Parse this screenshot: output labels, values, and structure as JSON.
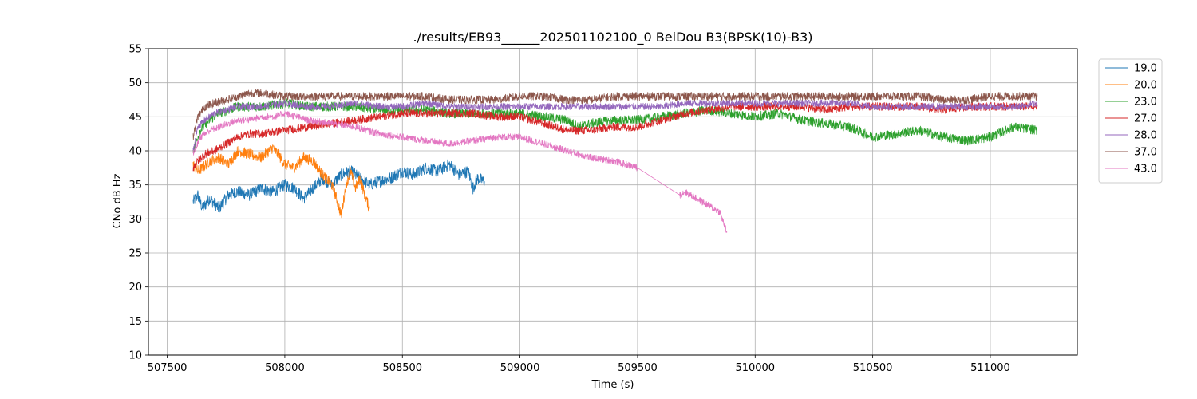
{
  "chart_data": {
    "type": "line",
    "title": "./results/EB93______202501102100_0 BeiDou B3(BPSK(10)-B3)",
    "xlabel": "Time (s)",
    "ylabel": "CNo dB Hz",
    "xlim": [
      507420,
      511370
    ],
    "ylim": [
      10,
      55
    ],
    "x_ticks": [
      507500,
      508000,
      508500,
      509000,
      509500,
      510000,
      510500,
      511000
    ],
    "y_ticks": [
      10,
      15,
      20,
      25,
      30,
      35,
      40,
      45,
      50,
      55
    ],
    "grid": true,
    "legend_position": "upper right, outside plot",
    "series": [
      {
        "name": "19.0",
        "color": "#1f77b4",
        "noise": 0.9,
        "x": [
          507610,
          507630,
          507650,
          507680,
          507720,
          507760,
          507800,
          507850,
          507900,
          507950,
          508000,
          508040,
          508080,
          508120,
          508160,
          508200,
          508240,
          508280,
          508320,
          508360,
          508400,
          508450,
          508500,
          508550,
          508600,
          508650,
          508700,
          508740,
          508780,
          508800,
          508820,
          508850
        ],
        "y": [
          32.5,
          33.5,
          31.5,
          33.0,
          31.5,
          33.5,
          34.0,
          33.5,
          34.5,
          34.0,
          35.0,
          34.5,
          33.0,
          34.5,
          36.0,
          35.0,
          36.5,
          37.0,
          36.0,
          35.0,
          35.5,
          36.0,
          37.0,
          36.5,
          37.5,
          37.0,
          38.0,
          36.5,
          37.0,
          34.5,
          36.0,
          35.5
        ]
      },
      {
        "name": "20.0",
        "color": "#ff7f0e",
        "noise": 0.8,
        "x": [
          507610,
          507630,
          507650,
          507680,
          507720,
          507760,
          507800,
          507850,
          507900,
          507950,
          508000,
          508040,
          508080,
          508120,
          508160,
          508200,
          508220,
          508240,
          508260,
          508280,
          508300,
          508320,
          508340,
          508360
        ],
        "y": [
          38.0,
          37.0,
          37.5,
          38.5,
          39.0,
          38.0,
          40.0,
          39.5,
          39.0,
          40.5,
          38.0,
          37.5,
          39.0,
          38.5,
          36.5,
          35.0,
          33.0,
          30.5,
          35.0,
          37.0,
          34.5,
          36.0,
          33.5,
          31.5
        ]
      },
      {
        "name": "23.0",
        "color": "#2ca02c",
        "noise": 0.7,
        "x": [
          507610,
          507640,
          507680,
          507720,
          507760,
          507800,
          507900,
          508000,
          508100,
          508200,
          508300,
          508400,
          508500,
          508600,
          508700,
          508800,
          508900,
          509000,
          509100,
          509200,
          509250,
          509300,
          509400,
          509500,
          509600,
          509700,
          509800,
          509900,
          510000,
          510100,
          510200,
          510300,
          510400,
          510500,
          510600,
          510700,
          510800,
          510900,
          511000,
          511100,
          511200
        ],
        "y": [
          40.0,
          43.0,
          44.5,
          45.5,
          46.0,
          46.5,
          46.5,
          47.0,
          46.5,
          46.5,
          46.5,
          46.0,
          46.0,
          46.0,
          45.5,
          45.5,
          45.5,
          45.5,
          45.0,
          44.5,
          43.5,
          44.0,
          44.5,
          44.5,
          45.0,
          45.5,
          46.0,
          45.5,
          45.0,
          45.5,
          44.5,
          44.0,
          43.5,
          42.0,
          42.5,
          43.0,
          42.0,
          41.5,
          42.0,
          43.5,
          43.0
        ]
      },
      {
        "name": "27.0",
        "color": "#d62728",
        "noise": 0.6,
        "x": [
          507610,
          507630,
          507660,
          507700,
          507750,
          507800,
          507850,
          507900,
          508000,
          508100,
          508200,
          508300,
          508400,
          508500,
          508600,
          508700,
          508800,
          508900,
          509000,
          509100,
          509200,
          509300,
          509400,
          509500,
          509600,
          509700,
          509800,
          509900,
          510000,
          510100,
          510200,
          510300,
          510400,
          510500,
          510600,
          510700,
          510800,
          510900,
          511000,
          511100,
          511200
        ],
        "y": [
          37.5,
          38.5,
          39.5,
          40.0,
          41.0,
          42.0,
          42.5,
          42.5,
          43.0,
          43.5,
          44.0,
          44.5,
          45.0,
          45.5,
          45.5,
          45.5,
          45.5,
          45.0,
          45.0,
          44.0,
          43.0,
          43.0,
          43.5,
          43.5,
          44.5,
          45.5,
          46.0,
          46.5,
          46.5,
          46.5,
          46.5,
          46.0,
          46.5,
          46.5,
          46.5,
          46.5,
          46.0,
          46.5,
          46.5,
          46.5,
          46.5
        ]
      },
      {
        "name": "28.0",
        "color": "#9467bd",
        "noise": 0.5,
        "x": [
          507610,
          507630,
          507660,
          507700,
          507750,
          507800,
          507900,
          508000,
          508100,
          508200,
          508300,
          508400,
          508500,
          508600,
          508700,
          508800,
          508900,
          509000,
          509100,
          509200,
          509300,
          509400,
          509500,
          509600,
          509700,
          509800,
          509900,
          510000,
          510100,
          510200,
          510300,
          510400,
          510500,
          510600,
          510700,
          510800,
          510900,
          511000,
          511100,
          511200
        ],
        "y": [
          40.0,
          43.5,
          44.5,
          45.5,
          46.0,
          46.5,
          46.5,
          47.0,
          46.5,
          46.5,
          47.0,
          46.5,
          46.5,
          47.0,
          46.5,
          46.5,
          46.5,
          46.5,
          46.5,
          46.5,
          46.5,
          46.5,
          46.5,
          46.5,
          47.0,
          47.0,
          47.0,
          47.0,
          47.0,
          47.0,
          47.0,
          47.0,
          46.5,
          46.5,
          46.5,
          46.5,
          46.5,
          46.5,
          46.5,
          47.0
        ]
      },
      {
        "name": "37.0",
        "color": "#8c564b",
        "noise": 0.6,
        "x": [
          507610,
          507630,
          507660,
          507700,
          507750,
          507800,
          507850,
          507900,
          508000,
          508100,
          508200,
          508300,
          508400,
          508500,
          508600,
          508700,
          508800,
          508900,
          509000,
          509100,
          509200,
          509300,
          509400,
          509500,
          509600,
          509700,
          509800,
          509900,
          510000,
          510100,
          510200,
          510300,
          510400,
          510500,
          510600,
          510700,
          510800,
          510900,
          511000,
          511100,
          511200
        ],
        "y": [
          42.0,
          45.0,
          46.5,
          47.0,
          47.5,
          48.0,
          48.5,
          48.5,
          48.0,
          48.0,
          48.0,
          48.0,
          48.0,
          48.0,
          48.0,
          47.5,
          47.5,
          47.5,
          48.0,
          48.0,
          47.5,
          47.5,
          48.0,
          48.0,
          48.0,
          48.0,
          48.0,
          48.0,
          48.0,
          48.0,
          48.0,
          48.0,
          48.0,
          48.0,
          48.0,
          48.0,
          47.5,
          47.5,
          48.0,
          48.0,
          48.0
        ]
      },
      {
        "name": "43.0",
        "color": "#e377c2",
        "noise": 0.5,
        "x": [
          507610,
          507640,
          507680,
          507720,
          507760,
          507800,
          507850,
          507900,
          507950,
          508000,
          508050,
          508100,
          508200,
          508300,
          508400,
          508500,
          508600,
          508700,
          508800,
          508900,
          509000,
          509100,
          509200,
          509300,
          509400,
          509500,
          509680,
          509700,
          509750,
          509800,
          509850,
          509880
        ],
        "y": [
          39.5,
          42.0,
          43.0,
          43.5,
          44.0,
          44.5,
          44.5,
          45.0,
          45.0,
          45.5,
          45.0,
          44.5,
          44.0,
          43.5,
          42.5,
          42.0,
          41.5,
          41.0,
          41.5,
          42.0,
          42.0,
          41.0,
          40.0,
          39.0,
          38.5,
          37.5,
          33.5,
          34.0,
          33.0,
          32.0,
          31.0,
          28.0
        ]
      }
    ]
  }
}
